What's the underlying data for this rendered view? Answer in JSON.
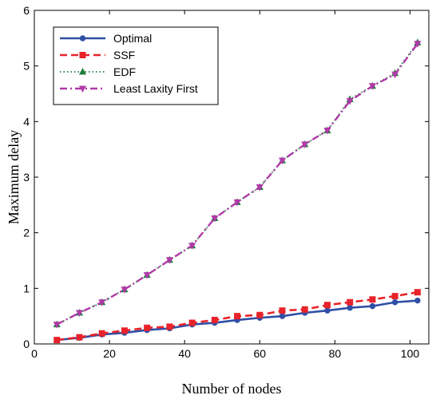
{
  "chart_data": {
    "type": "line",
    "xlabel": "Number of nodes",
    "ylabel": "Maximum delay",
    "xlim": [
      0,
      105
    ],
    "ylim": [
      0,
      6
    ],
    "xticks": [
      0,
      20,
      40,
      60,
      80,
      100
    ],
    "yticks": [
      0,
      1,
      2,
      3,
      4,
      5,
      6
    ],
    "grid": false,
    "legend_position": "top-left",
    "x": [
      6,
      12,
      18,
      24,
      30,
      36,
      42,
      48,
      54,
      60,
      66,
      72,
      78,
      84,
      90,
      96,
      102
    ],
    "series": [
      {
        "name": "Optimal",
        "color": "#2f4fa6",
        "line_style": "solid",
        "marker": "circle",
        "values": [
          0.07,
          0.11,
          0.17,
          0.2,
          0.25,
          0.28,
          0.35,
          0.38,
          0.43,
          0.47,
          0.5,
          0.56,
          0.6,
          0.65,
          0.68,
          0.75,
          0.78
        ]
      },
      {
        "name": "SSF",
        "color": "#e8232a",
        "line_style": "dashed",
        "marker": "square",
        "values": [
          0.07,
          0.12,
          0.19,
          0.24,
          0.29,
          0.31,
          0.38,
          0.43,
          0.5,
          0.52,
          0.6,
          0.62,
          0.7,
          0.75,
          0.8,
          0.86,
          0.93
        ]
      },
      {
        "name": "EDF",
        "color": "#1e7a3c",
        "line_style": "dotted",
        "marker": "triangle-up",
        "values": [
          0.35,
          0.56,
          0.75,
          0.98,
          1.24,
          1.51,
          1.77,
          2.26,
          2.55,
          2.82,
          3.3,
          3.59,
          3.84,
          4.4,
          4.64,
          4.87,
          5.42
        ]
      },
      {
        "name": "Least Laxity First",
        "color": "#b03aa8",
        "line_style": "dashdot",
        "marker": "triangle-down",
        "values": [
          0.35,
          0.56,
          0.75,
          0.98,
          1.24,
          1.51,
          1.77,
          2.26,
          2.55,
          2.82,
          3.3,
          3.59,
          3.84,
          4.37,
          4.64,
          4.85,
          5.4
        ]
      }
    ]
  }
}
